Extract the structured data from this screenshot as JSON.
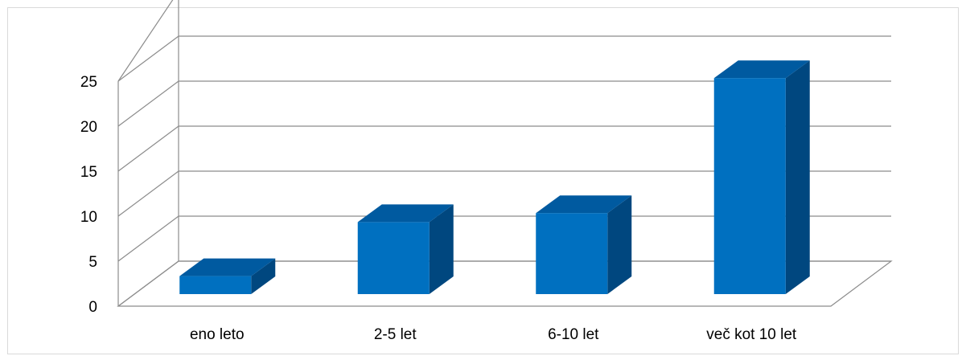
{
  "chart_data": {
    "type": "bar",
    "style": "3d-column",
    "title": "",
    "xlabel": "",
    "ylabel": "",
    "categories": [
      "eno leto",
      "2-5 let",
      "6-10 let",
      "več kot 10 let"
    ],
    "values": [
      2,
      8,
      9,
      24
    ],
    "ylim": [
      0,
      25
    ],
    "yticks": [
      "0",
      "5",
      "10",
      "15",
      "20",
      "25"
    ],
    "grid": true,
    "legend": "none",
    "colors": {
      "bar_front": "#0070c0",
      "bar_top": "#005aa0",
      "bar_side": "#00477f",
      "grid": "#8c8c8c"
    }
  }
}
